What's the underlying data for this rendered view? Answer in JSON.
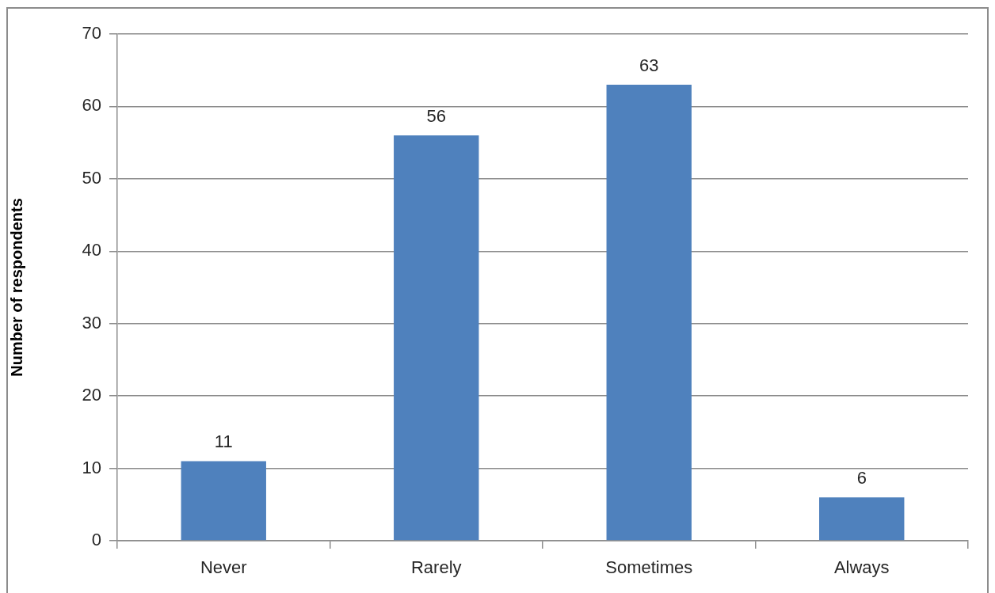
{
  "chart_data": {
    "type": "bar",
    "ylabel": "Number of respondents",
    "categories": [
      "Never",
      "Rarely",
      "Sometimes",
      "Always"
    ],
    "values": [
      11,
      56,
      63,
      6
    ],
    "color": "#4f81bd",
    "ylim": [
      0,
      70
    ],
    "yticks": [
      0,
      10,
      20,
      30,
      40,
      50,
      60,
      70
    ],
    "grid": "y",
    "data_labels": true
  }
}
